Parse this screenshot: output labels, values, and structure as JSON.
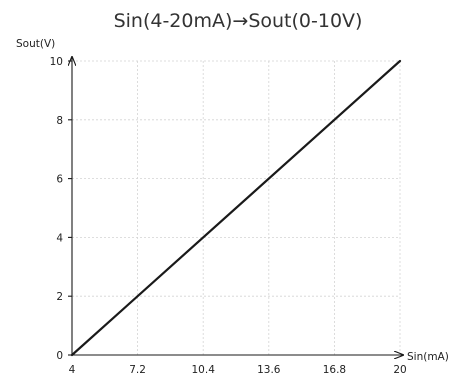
{
  "chart_data": {
    "type": "line",
    "title": "Sin(4-20mA)→Sout(0-10V)",
    "xlabel": "Sin(mA)",
    "ylabel": "Sout(V)",
    "xlim": [
      4,
      20
    ],
    "ylim": [
      0,
      10
    ],
    "x_ticks": [
      4,
      7.2,
      10.4,
      13.6,
      16.8,
      20
    ],
    "x_tick_labels": [
      "4",
      "7.2",
      "10.4",
      "13.6",
      "16.8",
      "20"
    ],
    "y_ticks": [
      0,
      2,
      4,
      6,
      8,
      10
    ],
    "y_tick_labels": [
      "0",
      "2",
      "4",
      "6",
      "8",
      "10"
    ],
    "grid": true,
    "series": [
      {
        "x": [
          4,
          20
        ],
        "y": [
          0,
          10
        ],
        "color": "#1a1a1a"
      }
    ]
  }
}
